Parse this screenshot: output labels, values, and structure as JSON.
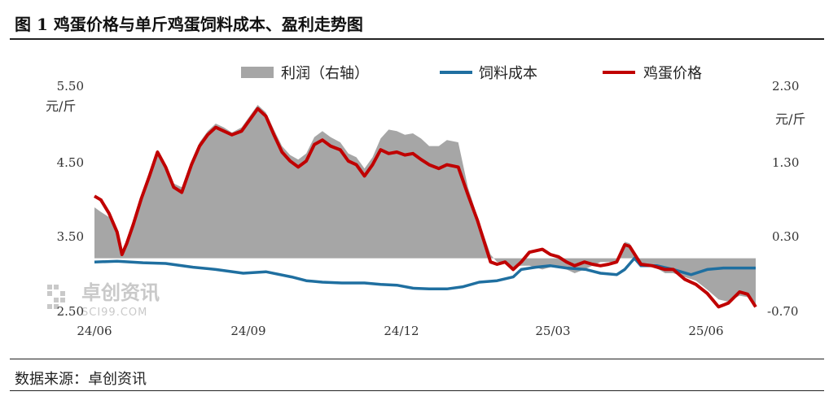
{
  "title": "图 1  鸡蛋价格与单斤鸡蛋饲料成本、盈利走势图",
  "source": "数据来源：卓创资讯",
  "watermark": {
    "name": "卓创资讯",
    "site": "SCI99.COM"
  },
  "chart_data": {
    "type": "line",
    "x_ticks": [
      "24/06",
      "24/09",
      "24/12",
      "25/03",
      "25/06"
    ],
    "left_axis": {
      "unit": "元/斤",
      "ticks": [
        "5.50",
        "4.50",
        "3.50",
        "2.50"
      ],
      "range": [
        2.5,
        5.5
      ]
    },
    "right_axis": {
      "unit": "元/斤",
      "ticks": [
        "2.30",
        "1.30",
        "0.30",
        "-0.70"
      ],
      "range": [
        -0.7,
        2.3
      ]
    },
    "colors": {
      "profit": "#a6a6a6",
      "feed_cost": "#1f6fa0",
      "egg_price": "#c00000"
    },
    "series": [
      {
        "name": "利润（右轴）",
        "axis": "right",
        "kind": "area",
        "points": [
          [
            "2024-06-01",
            0.68
          ],
          [
            "2024-06-05",
            0.62
          ],
          [
            "2024-06-10",
            0.55
          ],
          [
            "2024-06-15",
            0.3
          ],
          [
            "2024-06-18",
            0.1
          ],
          [
            "2024-06-21",
            0.25
          ],
          [
            "2024-06-25",
            0.5
          ],
          [
            "2024-06-30",
            0.85
          ],
          [
            "2024-07-05",
            1.15
          ],
          [
            "2024-07-10",
            1.45
          ],
          [
            "2024-07-15",
            1.25
          ],
          [
            "2024-07-20",
            1.0
          ],
          [
            "2024-07-25",
            0.95
          ],
          [
            "2024-07-31",
            1.3
          ],
          [
            "2024-08-05",
            1.55
          ],
          [
            "2024-08-10",
            1.7
          ],
          [
            "2024-08-15",
            1.8
          ],
          [
            "2024-08-20",
            1.75
          ],
          [
            "2024-08-25",
            1.68
          ],
          [
            "2024-08-31",
            1.75
          ],
          [
            "2024-09-05",
            1.9
          ],
          [
            "2024-09-10",
            2.05
          ],
          [
            "2024-09-15",
            1.95
          ],
          [
            "2024-09-20",
            1.72
          ],
          [
            "2024-09-25",
            1.5
          ],
          [
            "2024-09-30",
            1.38
          ],
          [
            "2024-10-05",
            1.32
          ],
          [
            "2024-10-10",
            1.4
          ],
          [
            "2024-10-15",
            1.62
          ],
          [
            "2024-10-20",
            1.7
          ],
          [
            "2024-10-25",
            1.62
          ],
          [
            "2024-10-31",
            1.55
          ],
          [
            "2024-11-05",
            1.4
          ],
          [
            "2024-11-10",
            1.35
          ],
          [
            "2024-11-15",
            1.2
          ],
          [
            "2024-11-20",
            1.35
          ],
          [
            "2024-11-25",
            1.6
          ],
          [
            "2024-11-30",
            1.72
          ],
          [
            "2024-12-05",
            1.7
          ],
          [
            "2024-12-10",
            1.65
          ],
          [
            "2024-12-15",
            1.67
          ],
          [
            "2024-12-20",
            1.6
          ],
          [
            "2024-12-25",
            1.5
          ],
          [
            "2024-12-31",
            1.5
          ],
          [
            "2025-01-05",
            1.58
          ],
          [
            "2025-01-12",
            1.55
          ],
          [
            "2025-01-18",
            0.95
          ],
          [
            "2025-01-24",
            0.55
          ],
          [
            "2025-02-01",
            0.05
          ],
          [
            "2025-02-05",
            -0.05
          ],
          [
            "2025-02-10",
            -0.05
          ],
          [
            "2025-02-15",
            -0.12
          ],
          [
            "2025-02-20",
            -0.1
          ],
          [
            "2025-02-25",
            -0.1
          ],
          [
            "2025-03-05",
            -0.15
          ],
          [
            "2025-03-10",
            -0.12
          ],
          [
            "2025-03-15",
            -0.1
          ],
          [
            "2025-03-20",
            -0.15
          ],
          [
            "2025-03-25",
            -0.2
          ],
          [
            "2025-03-31",
            -0.15
          ],
          [
            "2025-04-05",
            -0.1
          ],
          [
            "2025-04-10",
            -0.05
          ],
          [
            "2025-04-15",
            -0.05
          ],
          [
            "2025-04-20",
            -0.05
          ],
          [
            "2025-04-25",
            0.22
          ],
          [
            "2025-04-28",
            0.2
          ],
          [
            "2025-05-05",
            -0.08
          ],
          [
            "2025-05-12",
            -0.1
          ],
          [
            "2025-05-20",
            -0.2
          ],
          [
            "2025-05-25",
            -0.2
          ],
          [
            "2025-06-01",
            -0.25
          ],
          [
            "2025-06-08",
            -0.3
          ],
          [
            "2025-06-15",
            -0.42
          ],
          [
            "2025-06-22",
            -0.55
          ],
          [
            "2025-06-28",
            -0.58
          ],
          [
            "2025-07-05",
            -0.5
          ],
          [
            "2025-07-10",
            -0.52
          ],
          [
            "2025-07-15",
            -0.62
          ]
        ]
      },
      {
        "name": "饲料成本",
        "axis": "left",
        "kind": "line",
        "points": [
          [
            "2024-06-01",
            3.15
          ],
          [
            "2024-06-15",
            3.16
          ],
          [
            "2024-07-01",
            3.14
          ],
          [
            "2024-07-15",
            3.13
          ],
          [
            "2024-08-01",
            3.08
          ],
          [
            "2024-08-15",
            3.05
          ],
          [
            "2024-09-01",
            3.0
          ],
          [
            "2024-09-15",
            3.02
          ],
          [
            "2024-10-01",
            2.95
          ],
          [
            "2024-10-10",
            2.9
          ],
          [
            "2024-10-20",
            2.88
          ],
          [
            "2024-11-01",
            2.87
          ],
          [
            "2024-11-15",
            2.87
          ],
          [
            "2024-11-25",
            2.85
          ],
          [
            "2024-12-05",
            2.84
          ],
          [
            "2024-12-15",
            2.8
          ],
          [
            "2024-12-25",
            2.79
          ],
          [
            "2025-01-05",
            2.79
          ],
          [
            "2025-01-15",
            2.82
          ],
          [
            "2025-01-25",
            2.88
          ],
          [
            "2025-02-05",
            2.9
          ],
          [
            "2025-02-15",
            2.95
          ],
          [
            "2025-02-20",
            3.05
          ],
          [
            "2025-03-01",
            3.08
          ],
          [
            "2025-03-10",
            3.1
          ],
          [
            "2025-03-20",
            3.07
          ],
          [
            "2025-04-01",
            3.05
          ],
          [
            "2025-04-10",
            3.0
          ],
          [
            "2025-04-20",
            2.98
          ],
          [
            "2025-04-25",
            3.05
          ],
          [
            "2025-05-01",
            3.2
          ],
          [
            "2025-05-05",
            3.1
          ],
          [
            "2025-05-15",
            3.1
          ],
          [
            "2025-05-25",
            3.05
          ],
          [
            "2025-06-05",
            2.98
          ],
          [
            "2025-06-15",
            3.05
          ],
          [
            "2025-06-25",
            3.07
          ],
          [
            "2025-07-05",
            3.07
          ],
          [
            "2025-07-15",
            3.07
          ]
        ]
      },
      {
        "name": "鸡蛋价格",
        "axis": "left",
        "kind": "line",
        "points": [
          [
            "2024-06-01",
            4.03
          ],
          [
            "2024-06-05",
            3.98
          ],
          [
            "2024-06-10",
            3.8
          ],
          [
            "2024-06-15",
            3.55
          ],
          [
            "2024-06-18",
            3.25
          ],
          [
            "2024-06-21",
            3.4
          ],
          [
            "2024-06-25",
            3.65
          ],
          [
            "2024-06-30",
            4.0
          ],
          [
            "2024-07-05",
            4.3
          ],
          [
            "2024-07-10",
            4.62
          ],
          [
            "2024-07-15",
            4.42
          ],
          [
            "2024-07-20",
            4.15
          ],
          [
            "2024-07-25",
            4.08
          ],
          [
            "2024-07-31",
            4.45
          ],
          [
            "2024-08-05",
            4.7
          ],
          [
            "2024-08-10",
            4.85
          ],
          [
            "2024-08-15",
            4.95
          ],
          [
            "2024-08-20",
            4.9
          ],
          [
            "2024-08-25",
            4.85
          ],
          [
            "2024-08-31",
            4.9
          ],
          [
            "2024-09-05",
            5.05
          ],
          [
            "2024-09-10",
            5.2
          ],
          [
            "2024-09-15",
            5.1
          ],
          [
            "2024-09-20",
            4.85
          ],
          [
            "2024-09-25",
            4.62
          ],
          [
            "2024-09-30",
            4.5
          ],
          [
            "2024-10-05",
            4.42
          ],
          [
            "2024-10-10",
            4.5
          ],
          [
            "2024-10-15",
            4.72
          ],
          [
            "2024-10-20",
            4.78
          ],
          [
            "2024-10-25",
            4.7
          ],
          [
            "2024-10-31",
            4.65
          ],
          [
            "2024-11-05",
            4.5
          ],
          [
            "2024-11-10",
            4.45
          ],
          [
            "2024-11-15",
            4.3
          ],
          [
            "2024-11-20",
            4.45
          ],
          [
            "2024-11-25",
            4.65
          ],
          [
            "2024-11-30",
            4.6
          ],
          [
            "2024-12-05",
            4.62
          ],
          [
            "2024-12-10",
            4.58
          ],
          [
            "2024-12-15",
            4.6
          ],
          [
            "2024-12-20",
            4.52
          ],
          [
            "2024-12-25",
            4.45
          ],
          [
            "2024-12-31",
            4.4
          ],
          [
            "2025-01-05",
            4.45
          ],
          [
            "2025-01-12",
            4.42
          ],
          [
            "2025-01-18",
            4.05
          ],
          [
            "2025-01-24",
            3.7
          ],
          [
            "2025-02-01",
            3.15
          ],
          [
            "2025-02-05",
            3.12
          ],
          [
            "2025-02-10",
            3.15
          ],
          [
            "2025-02-15",
            3.05
          ],
          [
            "2025-02-20",
            3.15
          ],
          [
            "2025-02-25",
            3.28
          ],
          [
            "2025-03-05",
            3.32
          ],
          [
            "2025-03-10",
            3.25
          ],
          [
            "2025-03-15",
            3.22
          ],
          [
            "2025-03-20",
            3.15
          ],
          [
            "2025-03-25",
            3.1
          ],
          [
            "2025-03-31",
            3.15
          ],
          [
            "2025-04-05",
            3.12
          ],
          [
            "2025-04-10",
            3.1
          ],
          [
            "2025-04-15",
            3.12
          ],
          [
            "2025-04-20",
            3.15
          ],
          [
            "2025-04-25",
            3.38
          ],
          [
            "2025-04-28",
            3.36
          ],
          [
            "2025-05-05",
            3.12
          ],
          [
            "2025-05-12",
            3.1
          ],
          [
            "2025-05-20",
            3.05
          ],
          [
            "2025-05-25",
            3.05
          ],
          [
            "2025-06-01",
            2.92
          ],
          [
            "2025-06-08",
            2.85
          ],
          [
            "2025-06-15",
            2.73
          ],
          [
            "2025-06-22",
            2.55
          ],
          [
            "2025-06-28",
            2.6
          ],
          [
            "2025-07-05",
            2.75
          ],
          [
            "2025-07-10",
            2.72
          ],
          [
            "2025-07-15",
            2.55
          ]
        ]
      }
    ],
    "legend": "top-center",
    "grid": false
  }
}
